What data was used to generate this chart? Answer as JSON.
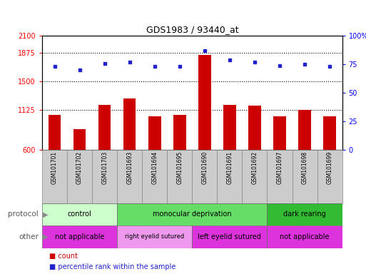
{
  "title": "GDS1983 / 93440_at",
  "samples": [
    "GSM101701",
    "GSM101702",
    "GSM101703",
    "GSM101693",
    "GSM101694",
    "GSM101695",
    "GSM101690",
    "GSM101691",
    "GSM101692",
    "GSM101697",
    "GSM101698",
    "GSM101699"
  ],
  "bar_values": [
    1060,
    870,
    1190,
    1270,
    1040,
    1060,
    1850,
    1190,
    1180,
    1040,
    1120,
    1040
  ],
  "dot_values": [
    73,
    70,
    76,
    77,
    73,
    73,
    87,
    79,
    77,
    74,
    75,
    73
  ],
  "ylim_left": [
    600,
    2100
  ],
  "ylim_right": [
    0,
    100
  ],
  "yticks_left": [
    600,
    1125,
    1500,
    1875,
    2100
  ],
  "yticks_right": [
    0,
    25,
    50,
    75,
    100
  ],
  "bar_color": "#cc0000",
  "dot_color": "#2222cc",
  "protocol_groups": [
    {
      "label": "control",
      "start": 0,
      "end": 3,
      "color": "#ccffcc"
    },
    {
      "label": "monocular deprivation",
      "start": 3,
      "end": 9,
      "color": "#66dd66"
    },
    {
      "label": "dark rearing",
      "start": 9,
      "end": 12,
      "color": "#33bb33"
    }
  ],
  "other_groups": [
    {
      "label": "not applicable",
      "start": 0,
      "end": 3,
      "color": "#dd33dd"
    },
    {
      "label": "right eyelid sutured",
      "start": 3,
      "end": 6,
      "color": "#ee99ee"
    },
    {
      "label": "left eyelid sutured",
      "start": 6,
      "end": 9,
      "color": "#dd33dd"
    },
    {
      "label": "not applicable",
      "start": 9,
      "end": 12,
      "color": "#dd33dd"
    }
  ],
  "protocol_label": "protocol",
  "other_label": "other",
  "legend_count_label": "count",
  "legend_pct_label": "percentile rank within the sample",
  "xlabel_bg": "#cccccc",
  "xlabel_border": "#888888"
}
